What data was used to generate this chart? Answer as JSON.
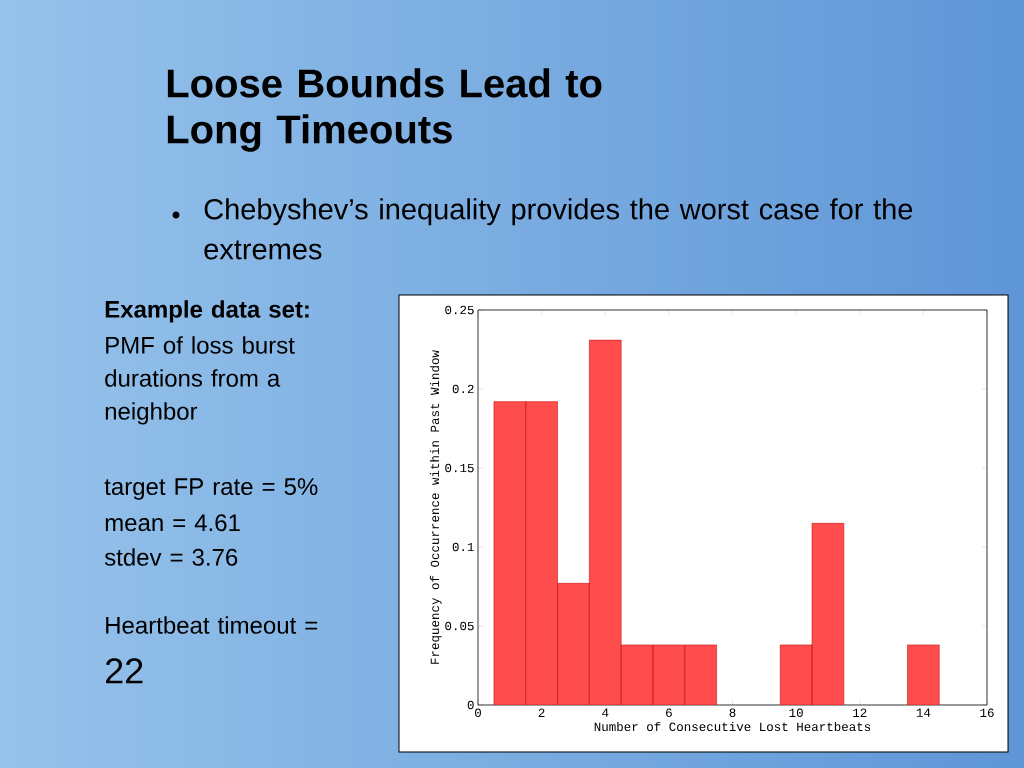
{
  "chart_data": {
    "type": "bar",
    "title": "Loose Bounds Lead to Long Timeouts",
    "subtitle": "Chebyshev’s inequality provides the worst case for the extremes",
    "xlabel": "Number of Consecutive Lost Heartbeats",
    "ylabel": "Frequency of Occurrence within Past Window",
    "x": [
      1,
      2,
      3,
      4,
      5,
      6,
      7,
      10,
      11,
      14
    ],
    "values": [
      0.192,
      0.192,
      0.077,
      0.231,
      0.038,
      0.038,
      0.038,
      0.038,
      0.115,
      0.038
    ],
    "color": "#ff4c4c",
    "xlim": [
      0,
      16
    ],
    "xticks": [
      0,
      2,
      4,
      6,
      8,
      10,
      12,
      14,
      16
    ],
    "ylim": [
      0,
      0.25
    ],
    "yticks": [
      0,
      0.05,
      0.1,
      0.15,
      0.2,
      0.25
    ],
    "annotations": [
      "Example data set:",
      "PMF of loss burst durations from a neighbor",
      "target FP rate = 5%",
      "mean = 4.61",
      "stdev = 3.76",
      "Heartbeat timeout =",
      "22"
    ]
  }
}
